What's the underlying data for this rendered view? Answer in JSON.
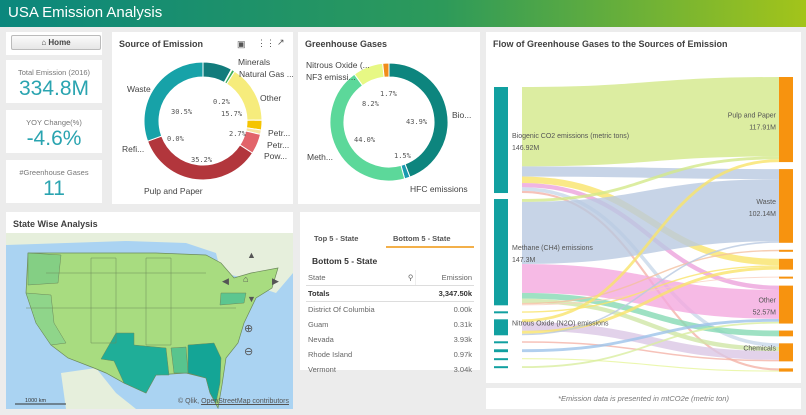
{
  "header": {
    "title": "USA Emission Analysis"
  },
  "home_button": {
    "label": "Home",
    "icon": "home-icon"
  },
  "kpis": [
    {
      "label": "Total Emission (2016)",
      "value": "334.8M"
    },
    {
      "label": "YOY Change(%)",
      "value": "-4.6%"
    },
    {
      "label": "#Greenhouse Gases",
      "value": "11"
    }
  ],
  "source_chart": {
    "title": "Source of Emission",
    "type": "donut",
    "slices": [
      {
        "label": "",
        "value": 8.0,
        "pct": "",
        "color": "#127c7c"
      },
      {
        "label": "Minerals",
        "value": 0.2,
        "pct": "0.2%",
        "color": "#8fd16a"
      },
      {
        "label": "Natural Gas ...",
        "value": 0.8,
        "pct": "",
        "color": "#3fae59"
      },
      {
        "label": "Other",
        "value": 15.7,
        "pct": "15.7%",
        "color": "#f6ec7c"
      },
      {
        "label": "Petr...",
        "value": 2.7,
        "pct": "2.7%",
        "color": "#f5c400"
      },
      {
        "label": "Petr...",
        "value": 1.2,
        "pct": "",
        "color": "#f7e3a0"
      },
      {
        "label": "Pow...",
        "value": 5.5,
        "pct": "",
        "color": "#e2646a"
      },
      {
        "label": "Pulp and Paper",
        "value": 35.2,
        "pct": "35.2%",
        "color": "#b2363c"
      },
      {
        "label": "Refi...",
        "value": 0.0,
        "pct": "0.0%",
        "color": "#1c9aa2"
      },
      {
        "label": "Waste",
        "value": 30.5,
        "pct": "30.5%",
        "color": "#17a2a8"
      }
    ]
  },
  "ghg_chart": {
    "title": "Greenhouse Gases",
    "type": "donut",
    "slices": [
      {
        "label": "Bio...",
        "value": 43.9,
        "pct": "43.9%",
        "color": "#0d857e"
      },
      {
        "label": "HFC emissions",
        "value": 1.5,
        "pct": "1.5%",
        "color": "#1a9ab0"
      },
      {
        "label": "Meth...",
        "value": 44.0,
        "pct": "44.0%",
        "color": "#5cd89a"
      },
      {
        "label": "Nitrous Oxide (...",
        "value": 8.2,
        "pct": "8.2%",
        "color": "#e7f884"
      },
      {
        "label": "NF3 emissi...",
        "value": 1.7,
        "pct": "1.7%",
        "color": "#f08c1a"
      }
    ]
  },
  "map": {
    "title": "State Wise Analysis",
    "scale_label": "1000 km",
    "attribution_prefix": "© Qlik, ",
    "attribution_link": "OpenStreetMap contributors"
  },
  "table": {
    "tabs": [
      "Top 5 - State",
      "Bottom 5 - State"
    ],
    "active_tab": 1,
    "title": "Bottom 5 - State",
    "columns": [
      "State",
      "Emission"
    ],
    "totals_label": "Totals",
    "totals_value": "3,347.50k",
    "rows": [
      [
        "District Of Columbia",
        "0.00k"
      ],
      [
        "Guam",
        "0.31k"
      ],
      [
        "Nevada",
        "3.93k"
      ],
      [
        "Rhode Island",
        "0.97k"
      ],
      [
        "Vermont",
        "3.04k"
      ]
    ]
  },
  "sankey": {
    "title": "Flow of Greenhouse Gases to the Sources of Emission",
    "left_nodes": [
      {
        "label": "Biogenic CO2 emissions (metric tons)",
        "value_label": "146.92M"
      },
      {
        "label": "Methane (CH4) emissions",
        "value_label": "147.3M"
      },
      {
        "label": "",
        "value_label": ""
      },
      {
        "label": "Nitrous Oxide (N2O) emissions",
        "value_label": ""
      },
      {
        "label": "",
        "value_label": ""
      },
      {
        "label": "",
        "value_label": ""
      },
      {
        "label": "",
        "value_label": ""
      },
      {
        "label": "",
        "value_label": ""
      }
    ],
    "right_nodes": [
      {
        "label": "Pulp and Paper",
        "value_label": "117.91M"
      },
      {
        "label": "Waste",
        "value_label": "102.14M"
      },
      {
        "label": "",
        "value_label": ""
      },
      {
        "label": "",
        "value_label": ""
      },
      {
        "label": "",
        "value_label": ""
      },
      {
        "label": "Other",
        "value_label": "52.57M"
      },
      {
        "label": "",
        "value_label": ""
      },
      {
        "label": "Chemicals",
        "value_label": ""
      },
      {
        "label": "",
        "value_label": ""
      }
    ],
    "flows": [
      [
        0,
        0,
        110,
        "#d3e98a"
      ],
      [
        0,
        1,
        14,
        "#b9c9e1"
      ],
      [
        0,
        3,
        9,
        "#f9e36a"
      ],
      [
        0,
        5,
        6,
        "#eca2dc"
      ],
      [
        0,
        7,
        4.92,
        "#c8d8ea"
      ],
      [
        0,
        8,
        3,
        "#f4b3a8"
      ],
      [
        1,
        0,
        4,
        "#d3e98a"
      ],
      [
        1,
        1,
        86,
        "#b9c9e1"
      ],
      [
        1,
        5,
        40,
        "#f4a9df"
      ],
      [
        1,
        6,
        8,
        "#86d9b4"
      ],
      [
        1,
        7,
        6,
        "#cfe6a6"
      ],
      [
        1,
        2,
        2,
        "#f4c0a0"
      ],
      [
        1,
        4,
        1.3,
        "#f9d0c0"
      ],
      [
        2,
        3,
        1.91,
        "#f9e36a"
      ],
      [
        3,
        0,
        3.91,
        "#f9e36a"
      ],
      [
        3,
        7,
        12,
        "#dbc7e5"
      ],
      [
        3,
        3,
        4.09,
        "#f9e36a"
      ],
      [
        3,
        1,
        2.14,
        "#b9c9e1"
      ],
      [
        4,
        7,
        2.08,
        "#f4b3a8"
      ],
      [
        5,
        5,
        4,
        "#9ec3ea"
      ],
      [
        6,
        8,
        1.5,
        "#e6f59a"
      ],
      [
        7,
        5,
        2.57,
        "#d9eea0"
      ]
    ]
  },
  "footnote": "*Emission data is presented in mtCO2e (metric ton)",
  "colors": {
    "accent": "#2aa4b0",
    "sankey_left": "#11a0a0",
    "sankey_right": "#f7930f"
  }
}
